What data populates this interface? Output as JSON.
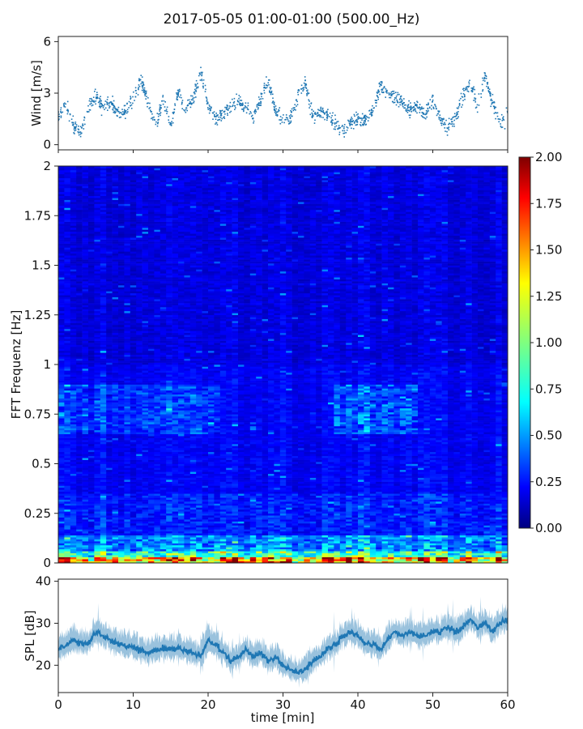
{
  "figure": {
    "title": "2017-05-05 01:00-01:00 (500.00_Hz)"
  },
  "chart_data": [
    {
      "type": "scatter",
      "panel": "wind",
      "ylabel": "Wind [m/s]",
      "xlim": [
        0,
        60
      ],
      "ylim": [
        -0.3,
        6.3
      ],
      "yticks": [
        0,
        3,
        6
      ],
      "color": "#1f77b4",
      "sampled_points": [
        [
          0,
          1.6
        ],
        [
          1,
          2.4
        ],
        [
          2,
          1.2
        ],
        [
          3,
          0.6
        ],
        [
          4,
          2.3
        ],
        [
          5,
          2.8
        ],
        [
          6,
          2.2
        ],
        [
          7,
          2.5
        ],
        [
          8,
          1.8
        ],
        [
          9,
          2.0
        ],
        [
          10,
          2.6
        ],
        [
          11,
          3.8
        ],
        [
          12,
          2.4
        ],
        [
          13,
          1.0
        ],
        [
          14,
          2.8
        ],
        [
          15,
          1.2
        ],
        [
          16,
          3.0
        ],
        [
          17,
          2.2
        ],
        [
          18,
          2.6
        ],
        [
          19,
          4.2
        ],
        [
          20,
          2.2
        ],
        [
          21,
          1.5
        ],
        [
          22,
          1.8
        ],
        [
          23,
          2.3
        ],
        [
          24,
          2.6
        ],
        [
          25,
          2.2
        ],
        [
          26,
          1.6
        ],
        [
          27,
          2.6
        ],
        [
          28,
          3.8
        ],
        [
          29,
          2.0
        ],
        [
          30,
          1.4
        ],
        [
          31,
          1.6
        ],
        [
          32,
          2.8
        ],
        [
          33,
          3.6
        ],
        [
          34,
          1.6
        ],
        [
          35,
          2.0
        ],
        [
          36,
          1.7
        ],
        [
          37,
          1.2
        ],
        [
          38,
          0.8
        ],
        [
          39,
          1.2
        ],
        [
          40,
          1.4
        ],
        [
          41,
          1.4
        ],
        [
          42,
          2.0
        ],
        [
          43,
          3.4
        ],
        [
          44,
          3.0
        ],
        [
          45,
          2.8
        ],
        [
          46,
          2.4
        ],
        [
          47,
          2.0
        ],
        [
          48,
          2.2
        ],
        [
          49,
          1.7
        ],
        [
          50,
          2.6
        ],
        [
          51,
          1.6
        ],
        [
          52,
          1.0
        ],
        [
          53,
          1.5
        ],
        [
          54,
          2.8
        ],
        [
          55,
          3.6
        ],
        [
          56,
          2.2
        ],
        [
          57,
          4.0
        ],
        [
          58,
          2.4
        ],
        [
          59,
          1.2
        ],
        [
          60,
          1.8
        ]
      ]
    },
    {
      "type": "heatmap",
      "panel": "spectrogram",
      "ylabel": "FFT Frequenz [Hz]",
      "xlim": [
        0,
        60
      ],
      "ylim": [
        0,
        2
      ],
      "yticks": [
        0,
        0.25,
        0.5,
        0.75,
        1,
        1.25,
        1.5,
        1.75,
        2
      ],
      "ytick_labels": [
        "0",
        "0.25",
        "0.5",
        "0.75",
        "1",
        "1.25",
        "1.5",
        "1.75",
        "2"
      ],
      "colormap": "jet",
      "colorbar": {
        "range": [
          0,
          2
        ],
        "ticks": [
          0,
          0.25,
          0.5,
          0.75,
          1.0,
          1.25,
          1.5,
          1.75,
          2.0
        ],
        "tick_labels": [
          "0.00",
          "0.25",
          "0.50",
          "0.75",
          "1.00",
          "1.25",
          "1.50",
          "1.75",
          "2.00"
        ]
      },
      "features": [
        {
          "freq": 0.02,
          "level": 1.6
        },
        {
          "freq": 0.06,
          "level": 0.9
        },
        {
          "freq": 0.1,
          "level": 0.55
        },
        {
          "freq": 0.78,
          "level": 0.5
        },
        {
          "freq_range": [
            0.2,
            2.0
          ],
          "level": 0.2
        }
      ]
    },
    {
      "type": "area",
      "panel": "spl",
      "xlabel": "time [min]",
      "ylabel": "SPL [dB]",
      "xlim": [
        0,
        60
      ],
      "ylim": [
        13.5,
        40.5
      ],
      "xticks": [
        0,
        10,
        20,
        30,
        40,
        50,
        60
      ],
      "yticks": [
        20,
        30,
        40
      ],
      "color": "#1f77b4",
      "sampled_points": [
        [
          0,
          24
        ],
        [
          2,
          26
        ],
        [
          4,
          25
        ],
        [
          5,
          28
        ],
        [
          6,
          27
        ],
        [
          8,
          25
        ],
        [
          10,
          24
        ],
        [
          12,
          23
        ],
        [
          14,
          24
        ],
        [
          16,
          24
        ],
        [
          18,
          23
        ],
        [
          19,
          22
        ],
        [
          20,
          26
        ],
        [
          21,
          25
        ],
        [
          22,
          23
        ],
        [
          23,
          21
        ],
        [
          24,
          22
        ],
        [
          25,
          24
        ],
        [
          26,
          22
        ],
        [
          27,
          23
        ],
        [
          28,
          21
        ],
        [
          29,
          22
        ],
        [
          30,
          20
        ],
        [
          31,
          19
        ],
        [
          32,
          18
        ],
        [
          33,
          19
        ],
        [
          34,
          21
        ],
        [
          35,
          22
        ],
        [
          36,
          24
        ],
        [
          37,
          25
        ],
        [
          38,
          27
        ],
        [
          39,
          28
        ],
        [
          40,
          27
        ],
        [
          41,
          25
        ],
        [
          42,
          25
        ],
        [
          43,
          24
        ],
        [
          44,
          26
        ],
        [
          45,
          28
        ],
        [
          46,
          27
        ],
        [
          47,
          28
        ],
        [
          48,
          27
        ],
        [
          49,
          27
        ],
        [
          50,
          28
        ],
        [
          51,
          28
        ],
        [
          52,
          29
        ],
        [
          53,
          28
        ],
        [
          54,
          29
        ],
        [
          55,
          31
        ],
        [
          56,
          29
        ],
        [
          57,
          30
        ],
        [
          58,
          28
        ],
        [
          59,
          30
        ],
        [
          60,
          31
        ]
      ]
    }
  ]
}
